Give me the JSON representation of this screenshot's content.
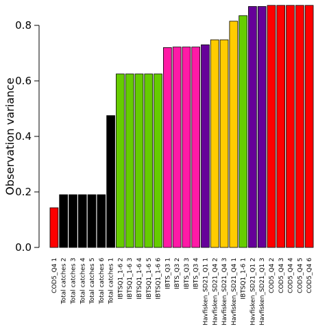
{
  "chart_data": {
    "type": "bar",
    "title": "",
    "xlabel": "",
    "ylabel": "Observation variance",
    "ylim": [
      0,
      0.87
    ],
    "yticks": [
      0.0,
      0.2,
      0.4,
      0.6,
      0.8
    ],
    "ytick_labels": [
      "0.0",
      "0.2",
      "0.4",
      "0.6",
      "0.8"
    ],
    "grid": false,
    "legend": "none",
    "categories": [
      "COD5_Q4 1",
      "Total catches 2",
      "Total catches 3",
      "Total catches 4",
      "Total catches 5",
      "Total catches 6",
      "Total catches 1",
      "IBTSQ1_1-6 2",
      "IBTSQ1_1-6 3",
      "IBTSQ1_1-6 4",
      "IBTSQ1_1-6 5",
      "IBTSQ1_1-6 6",
      "IBTS_Q3 1",
      "IBTS_Q3 2",
      "IBTS_Q3 3",
      "IBTS_Q3 4",
      "Havfisken_SD21_Q1 1",
      "Havfisken_SD21_Q4 2",
      "Havfisken_SD21_Q4 3",
      "Havfisken_SD21_Q4 1",
      "IBTSQ1_1-6 1",
      "Havfisken_SD21_Q1 2",
      "Havfisken_SD21_Q1 3",
      "COD5_Q4 2",
      "COD5_Q4 3",
      "COD5_Q4 4",
      "COD5_Q4 5",
      "COD5_Q4 6"
    ],
    "values": [
      0.143,
      0.19,
      0.19,
      0.19,
      0.19,
      0.19,
      0.475,
      0.625,
      0.625,
      0.625,
      0.625,
      0.625,
      0.72,
      0.722,
      0.722,
      0.722,
      0.73,
      0.748,
      0.748,
      0.815,
      0.835,
      0.868,
      0.868,
      0.872,
      0.872,
      0.872,
      0.872,
      0.872
    ],
    "colors": [
      "#ff0000",
      "#000000",
      "#000000",
      "#000000",
      "#000000",
      "#000000",
      "#000000",
      "#66cc00",
      "#66cc00",
      "#66cc00",
      "#66cc00",
      "#66cc00",
      "#ff1aa6",
      "#ff1aa6",
      "#ff1aa6",
      "#ff1aa6",
      "#660099",
      "#ffcc00",
      "#ffcc00",
      "#ffcc00",
      "#66cc00",
      "#660099",
      "#660099",
      "#ff0000",
      "#ff0000",
      "#ff0000",
      "#ff0000",
      "#ff0000"
    ]
  }
}
